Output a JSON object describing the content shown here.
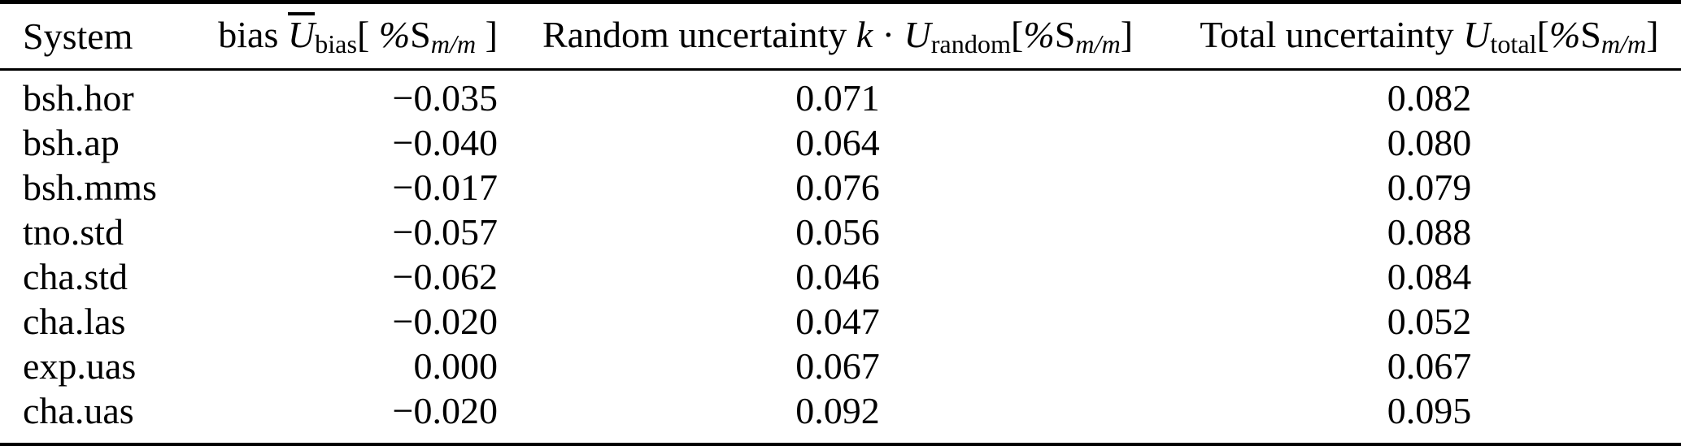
{
  "colors": {
    "background": "#ffffff",
    "text": "#000000",
    "rule": "#000000"
  },
  "table": {
    "headers": {
      "system": "System",
      "bias": {
        "label": "bias ",
        "var": "U",
        "var_sub": "bias",
        "open": "[ ",
        "pct": "%",
        "unit": "S",
        "unit_sub": "m/m",
        "close": " ]"
      },
      "random": {
        "label": "Random uncertainty ",
        "kvar": "k",
        "dot": " · ",
        "var": "U",
        "var_sub": "random",
        "open": "[",
        "pct": "%",
        "unit": "S",
        "unit_sub": "m/m",
        "close": "]"
      },
      "total": {
        "label": "Total uncertainty ",
        "var": "U",
        "var_sub": "total",
        "open": "[",
        "pct": "%",
        "unit": "S",
        "unit_sub": "m/m",
        "close": "]"
      }
    },
    "rows": [
      {
        "system": "bsh.hor",
        "bias": "−0.035",
        "random": "0.071",
        "total": "0.082"
      },
      {
        "system": "bsh.ap",
        "bias": "−0.040",
        "random": "0.064",
        "total": "0.080"
      },
      {
        "system": "bsh.mms",
        "bias": "−0.017",
        "random": "0.076",
        "total": "0.079"
      },
      {
        "system": "tno.std",
        "bias": "−0.057",
        "random": "0.056",
        "total": "0.088"
      },
      {
        "system": "cha.std",
        "bias": "−0.062",
        "random": "0.046",
        "total": "0.084"
      },
      {
        "system": "cha.las",
        "bias": "−0.020",
        "random": "0.047",
        "total": "0.052"
      },
      {
        "system": "exp.uas",
        "bias": "0.000",
        "random": "0.067",
        "total": "0.067"
      },
      {
        "system": "cha.uas",
        "bias": "−0.020",
        "random": "0.092",
        "total": "0.095"
      }
    ]
  }
}
